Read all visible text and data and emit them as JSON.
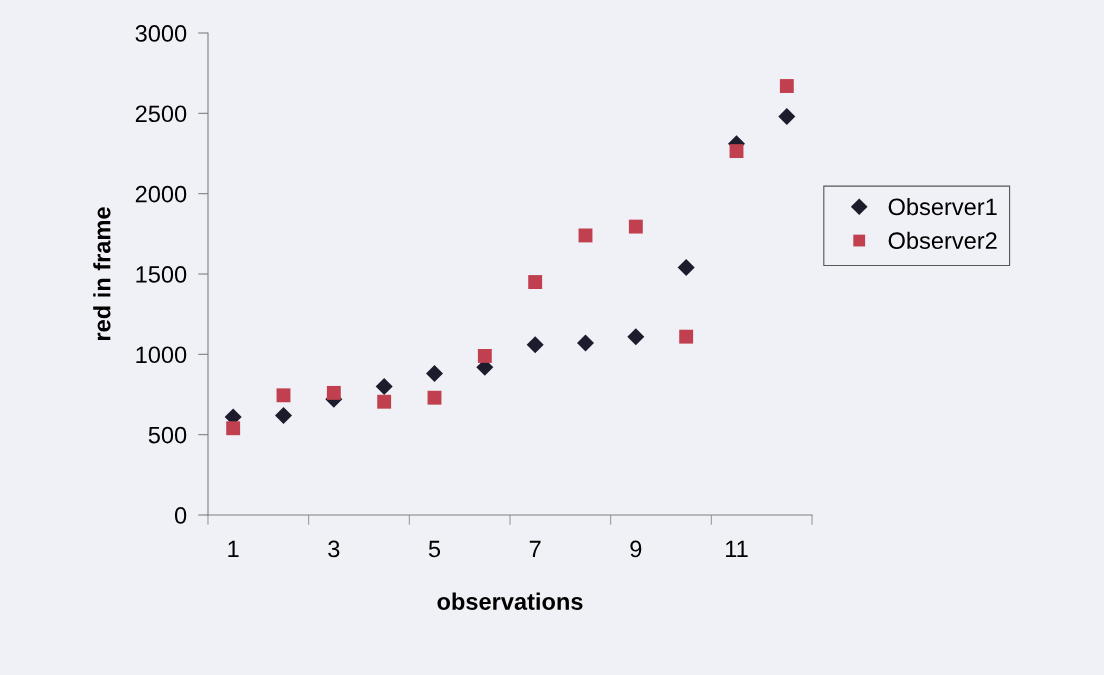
{
  "chart_data": {
    "type": "scatter",
    "xlabel": "observations",
    "ylabel": "red in frame",
    "categories": [
      "1",
      null,
      "3",
      null,
      "5",
      null,
      "7",
      null,
      "9",
      null,
      "11",
      null
    ],
    "series": [
      {
        "name": "Observer1",
        "color": "#1c1c2c",
        "marker": "diamond",
        "values": [
          610,
          620,
          720,
          800,
          880,
          920,
          1060,
          1070,
          1110,
          1540,
          2310,
          2480
        ]
      },
      {
        "name": "Observer2",
        "color": "#c0404f",
        "marker": "square",
        "values": [
          540,
          745,
          760,
          705,
          730,
          990,
          1450,
          1740,
          1795,
          1110,
          2265,
          2670
        ]
      }
    ],
    "ylim": [
      0,
      3000
    ],
    "yticks": [
      0,
      500,
      1000,
      1500,
      2000,
      2500,
      3000
    ],
    "grid": false,
    "legend": "right"
  }
}
